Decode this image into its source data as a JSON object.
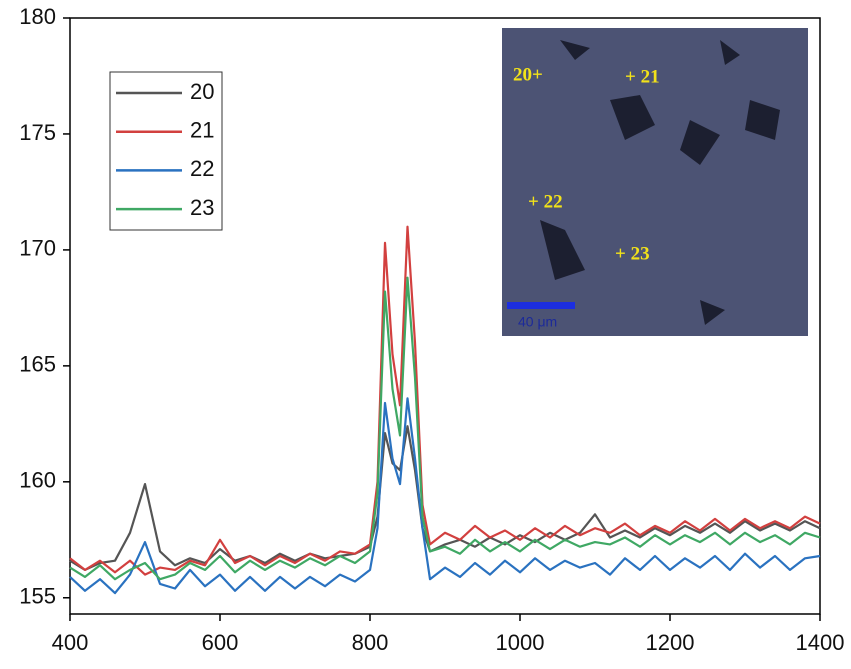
{
  "chart_data": {
    "type": "line",
    "x": [
      400,
      420,
      440,
      460,
      480,
      500,
      520,
      540,
      560,
      580,
      600,
      620,
      640,
      660,
      680,
      700,
      720,
      740,
      760,
      780,
      800,
      810,
      820,
      830,
      840,
      850,
      860,
      870,
      880,
      900,
      920,
      940,
      960,
      980,
      1000,
      1020,
      1040,
      1060,
      1080,
      1100,
      1120,
      1140,
      1160,
      1180,
      1200,
      1220,
      1240,
      1260,
      1280,
      1300,
      1320,
      1340,
      1360,
      1380,
      1400
    ],
    "series": [
      {
        "name": "20",
        "color": "#555555",
        "values": [
          156.6,
          156.2,
          156.5,
          156.6,
          157.8,
          159.9,
          157.0,
          156.4,
          156.7,
          156.5,
          157.1,
          156.6,
          156.8,
          156.5,
          156.9,
          156.6,
          156.9,
          156.7,
          156.8,
          156.9,
          157.2,
          158.5,
          162.1,
          160.8,
          160.5,
          162.4,
          160.5,
          158.0,
          157.0,
          157.3,
          157.5,
          157.2,
          157.6,
          157.3,
          157.7,
          157.4,
          157.8,
          157.5,
          157.8,
          158.6,
          157.6,
          157.9,
          157.6,
          158.0,
          157.7,
          158.1,
          157.8,
          158.2,
          157.8,
          158.3,
          157.9,
          158.2,
          157.9,
          158.3,
          158.0
        ]
      },
      {
        "name": "21",
        "color": "#d2403f",
        "values": [
          156.7,
          156.2,
          156.6,
          156.1,
          156.6,
          156.0,
          156.3,
          156.2,
          156.6,
          156.4,
          157.5,
          156.5,
          156.8,
          156.4,
          156.8,
          156.5,
          156.9,
          156.6,
          157.0,
          156.9,
          157.3,
          160.0,
          170.3,
          165.5,
          163.3,
          171.0,
          166.0,
          159.0,
          157.3,
          157.8,
          157.5,
          158.1,
          157.6,
          157.9,
          157.5,
          158.0,
          157.6,
          158.1,
          157.7,
          158.0,
          157.8,
          158.2,
          157.7,
          158.1,
          157.8,
          158.3,
          157.9,
          158.4,
          157.9,
          158.4,
          158.0,
          158.3,
          158.0,
          158.5,
          158.2
        ]
      },
      {
        "name": "22",
        "color": "#2a72c0",
        "values": [
          155.9,
          155.3,
          155.8,
          155.2,
          156.0,
          157.4,
          155.6,
          155.4,
          156.2,
          155.5,
          156.0,
          155.3,
          155.9,
          155.3,
          155.9,
          155.4,
          155.9,
          155.5,
          156.0,
          155.7,
          156.2,
          158.0,
          163.4,
          161.0,
          159.9,
          163.6,
          161.0,
          158.0,
          155.8,
          156.3,
          155.9,
          156.5,
          156.0,
          156.6,
          156.1,
          156.7,
          156.2,
          156.6,
          156.3,
          156.5,
          156.0,
          156.7,
          156.2,
          156.8,
          156.2,
          156.7,
          156.3,
          156.8,
          156.2,
          156.9,
          156.3,
          156.8,
          156.2,
          156.7,
          156.8
        ]
      },
      {
        "name": "23",
        "color": "#3fa864",
        "values": [
          156.3,
          155.9,
          156.4,
          155.8,
          156.2,
          156.5,
          155.8,
          156.0,
          156.5,
          156.2,
          156.8,
          156.1,
          156.6,
          156.2,
          156.6,
          156.3,
          156.7,
          156.4,
          156.8,
          156.5,
          157.0,
          159.5,
          168.2,
          164.0,
          162.0,
          168.8,
          164.5,
          158.5,
          157.0,
          157.2,
          156.9,
          157.5,
          157.0,
          157.4,
          157.0,
          157.5,
          157.1,
          157.5,
          157.2,
          157.4,
          157.3,
          157.6,
          157.2,
          157.7,
          157.3,
          157.7,
          157.4,
          157.8,
          157.3,
          157.8,
          157.4,
          157.7,
          157.3,
          157.8,
          157.6
        ]
      }
    ],
    "xlim": [
      400,
      1400
    ],
    "xticks": [
      400,
      600,
      800,
      1000,
      1200,
      1400
    ],
    "ylim": [
      154.3,
      180
    ],
    "yticks": [
      155,
      160,
      165,
      170,
      175,
      180
    ],
    "grid": false,
    "legend": "upper left",
    "inset": {
      "labels": [
        "20+",
        "+ 21",
        "+ 22",
        "+ 23"
      ],
      "scale_bar": "40 μm"
    }
  }
}
